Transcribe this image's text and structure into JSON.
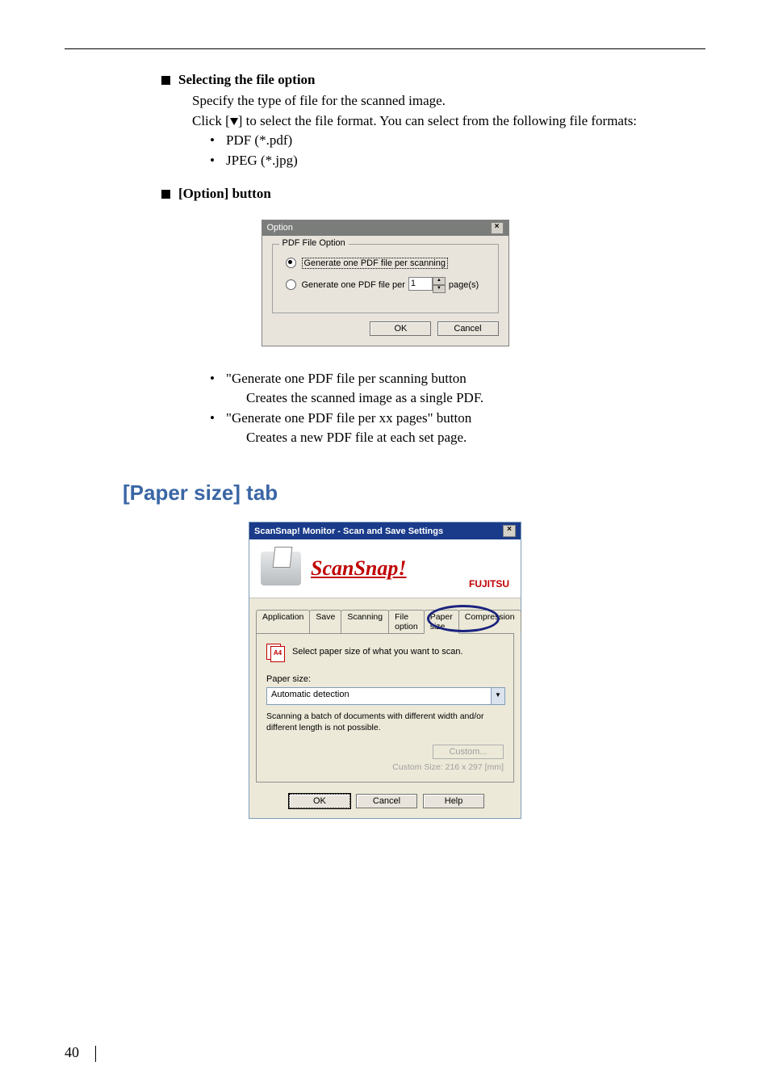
{
  "sections": {
    "file_option": {
      "heading": "Selecting the file option",
      "line1": "Specify the type of file for the scanned image.",
      "line2_pre": "Click [",
      "line2_post": "] to select the file format. You can select from the following file formats:",
      "formats": [
        "PDF (*.pdf)",
        "JPEG (*.jpg)"
      ]
    },
    "option_btn": {
      "heading": "[Option] button"
    },
    "gen_list": {
      "item1": "\"Generate one PDF file per scanning button",
      "item1_sub": "Creates the scanned image as a single PDF.",
      "item2": "\"Generate one PDF file per xx pages\" button",
      "item2_sub": "Creates a new PDF file at each set page."
    }
  },
  "option_dialog": {
    "title": "Option",
    "fieldset": "PDF File Option",
    "radio1": "Generate one PDF file per scanning",
    "radio2_pre": "Generate one PDF file per",
    "radio2_val": "1",
    "radio2_post": "page(s)",
    "ok": "OK",
    "cancel": "Cancel"
  },
  "h2": "[Paper size] tab",
  "ss_dialog": {
    "title": "ScanSnap! Monitor - Scan and Save Settings",
    "logo": "ScanSnap!",
    "brand": "FUJITSU",
    "tabs": [
      "Application",
      "Save",
      "Scanning",
      "File option",
      "Paper size",
      "Compression"
    ],
    "panel_text": "Select paper size of what you want to scan.",
    "a4": "A4",
    "paper_label": "Paper size:",
    "combo_value": "Automatic detection",
    "note": "Scanning a batch of documents with different width and/or different length is not possible.",
    "custom_btn": "Custom...",
    "custom_size": "Custom Size:  216 x 297 [mm]",
    "ok": "OK",
    "cancel": "Cancel",
    "help": "Help"
  },
  "page_number": "40"
}
